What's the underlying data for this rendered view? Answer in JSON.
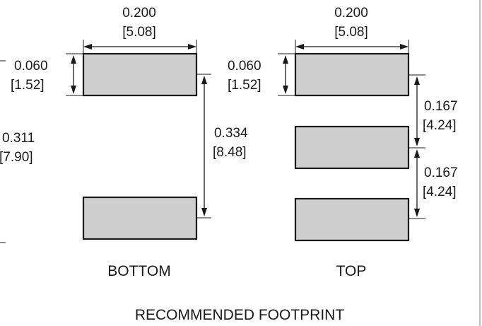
{
  "bottom_view": {
    "width": {
      "inch": "0.200",
      "mm": "[5.08]"
    },
    "pad_height": {
      "inch": "0.060",
      "mm": "[1.52]"
    },
    "overall_height": {
      "inch": "0.311",
      "mm": "[7.90]"
    },
    "pad_spacing": {
      "inch": "0.334",
      "mm": "[8.48]"
    },
    "label": "BOTTOM"
  },
  "top_view": {
    "width": {
      "inch": "0.200",
      "mm": "[5.08]"
    },
    "pad_height": {
      "inch": "0.060",
      "mm": "[1.52]"
    },
    "pitch_1": {
      "inch": "0.167",
      "mm": "[4.24]"
    },
    "pitch_2": {
      "inch": "0.167",
      "mm": "[4.24]"
    },
    "label": "TOP"
  },
  "caption": "RECOMMENDED FOOTPRINT",
  "colors": {
    "pad_fill": "#cfcfcf",
    "line": "#1a1a1a",
    "frame": "#bdbdbd"
  }
}
